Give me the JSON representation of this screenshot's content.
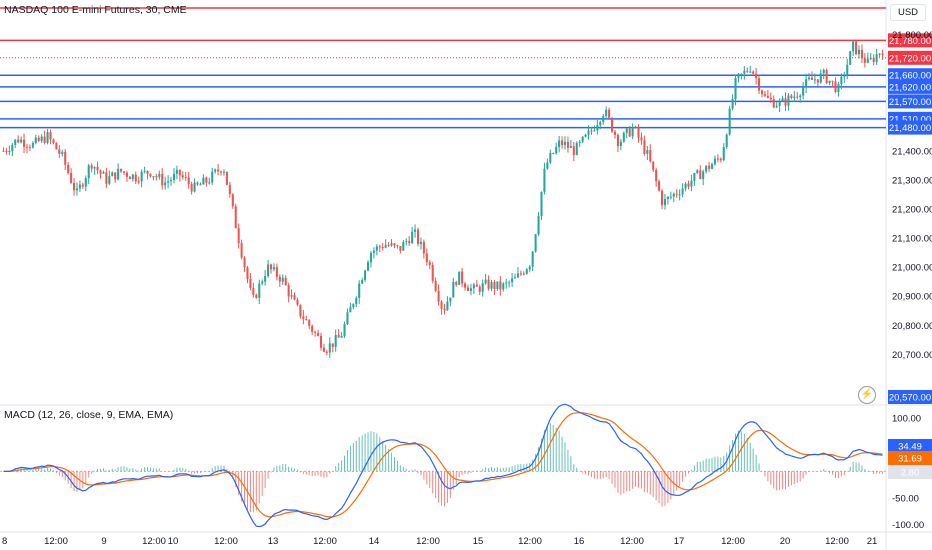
{
  "header": {
    "symbol_title": "NASDAQ 100 E-mini Futures, 30, CME",
    "currency": "USD",
    "macd_title": "MACD (12, 26, close, 9, EMA, EMA)"
  },
  "colors": {
    "up": "#26a69a",
    "down": "#ef5350",
    "support": "#2962ff",
    "resistance": "#f23645",
    "macd_line": "#2962ff",
    "signal_line": "#ff6d00",
    "hist_up": "#26a69a",
    "hist_down": "#ef5350"
  },
  "chart_data": [
    {
      "type": "candlestick",
      "title": "NASDAQ 100 E-mini Futures, 30, CME",
      "ylim": [
        20550,
        21850
      ],
      "y_ticks": [
        "21,800.00",
        "21,400.00",
        "21,300.00",
        "21,200.00",
        "21,100.00",
        "21,000.00",
        "20,900.00",
        "20,800.00",
        "20,700.00"
      ],
      "x_ticks": [
        "8",
        "12:00",
        "9",
        "12:00",
        "10",
        "12:00",
        "13",
        "12:00",
        "14",
        "12:00",
        "15",
        "12:00",
        "16",
        "12:00",
        "17",
        "12:00",
        "20",
        "12:00",
        "21"
      ],
      "series": [
        {
          "name": "close_path",
          "values": [
            21400,
            21440,
            21420,
            21450,
            21380,
            21250,
            21360,
            21300,
            21330,
            21310,
            21330,
            21290,
            21320,
            21270,
            21300,
            21350,
            21110,
            20880,
            21000,
            20960,
            20860,
            20790,
            20720,
            20760,
            20900,
            21050,
            21080,
            21060,
            21120,
            21020,
            20850,
            20970,
            20920,
            20940,
            20930,
            20960,
            21020,
            21350,
            21430,
            21400,
            21460,
            21540,
            21430,
            21480,
            21380,
            21220,
            21260,
            21300,
            21340,
            21380,
            21640,
            21690,
            21580,
            21560,
            21590,
            21640,
            21660,
            21610,
            21760,
            21700,
            21750
          ]
        }
      ],
      "lines": [
        {
          "label": "21,780.00",
          "value": 21780,
          "color": "#f23645"
        },
        {
          "label": "21,660.00",
          "value": 21660,
          "color": "#2962ff"
        },
        {
          "label": "21,620.00",
          "value": 21620,
          "color": "#2962ff"
        },
        {
          "label": "21,570.00",
          "value": 21570,
          "color": "#2962ff"
        },
        {
          "label": "21,510.00",
          "value": 21510,
          "color": "#2962ff"
        },
        {
          "label": "21,480.00",
          "value": 21480,
          "color": "#2962ff"
        }
      ],
      "top_line": {
        "label": "",
        "color": "#f23645"
      },
      "current_price": {
        "label": "21,720.00",
        "value": 21720,
        "color": "#f23645"
      },
      "bottom_tag": {
        "label": "20,570.00",
        "value": 20570,
        "color": "#2962ff"
      },
      "grid": false
    },
    {
      "type": "macd",
      "title": "MACD (12, 26, close, 9, EMA, EMA)",
      "ylim": [
        -110,
        115
      ],
      "y_ticks": [
        "100.00",
        "-50.00",
        "-100.00"
      ],
      "tags": [
        {
          "label": "34.49",
          "color": "#2962ff"
        },
        {
          "label": "31.69",
          "color": "#ff6d00"
        },
        {
          "label": "2.80",
          "color": "#e0e3eb"
        }
      ]
    }
  ]
}
